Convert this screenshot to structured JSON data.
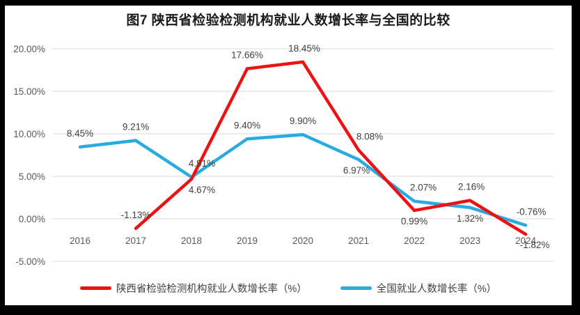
{
  "chart_data": {
    "type": "line",
    "title": "图7 陕西省检验检测机构就业人数增长率与全国的比较",
    "categories": [
      "2016",
      "2017",
      "2018",
      "2019",
      "2020",
      "2021",
      "2022",
      "2023",
      "2024"
    ],
    "series": [
      {
        "name": "陕西省检验检测机构就业人数增长率（%）",
        "color": "#ee1111",
        "values": [
          null,
          -1.13,
          4.67,
          17.66,
          18.45,
          8.08,
          0.99,
          2.16,
          -1.82
        ],
        "data_labels": [
          "",
          "-1.13%",
          "4.67%",
          "17.66%",
          "18.45%",
          "8.08%",
          "0.99%",
          "2.16%",
          "-1.82%"
        ],
        "label_placement": [
          "",
          "above",
          "below",
          "above",
          "above",
          "above",
          "below",
          "above",
          "below"
        ],
        "label_dx": [
          0,
          0,
          15,
          0,
          2,
          16,
          0,
          2,
          13
        ]
      },
      {
        "name": "全国就业人数增长率（%）",
        "color": "#29abe2",
        "values": [
          8.45,
          9.21,
          4.91,
          9.4,
          9.9,
          6.97,
          2.07,
          1.32,
          -0.76
        ],
        "data_labels": [
          "8.45%",
          "9.21%",
          "4.91%",
          "9.40%",
          "9.90%",
          "6.97%",
          "2.07%",
          "1.32%",
          "-0.76%"
        ],
        "label_placement": [
          "above",
          "above",
          "above",
          "above",
          "above",
          "below",
          "above",
          "below",
          "above"
        ],
        "label_dx": [
          0,
          0,
          15,
          0,
          0,
          -3,
          13,
          0,
          8
        ]
      }
    ],
    "ylim": [
      -5,
      20
    ],
    "ytick_values": [
      20,
      15,
      10,
      5,
      0,
      -5
    ],
    "ytick_labels": [
      "20.00%",
      "15.00%",
      "10.00%",
      "5.00%",
      "0.00%",
      "-5.00%"
    ],
    "grid": true,
    "legend_position": "bottom",
    "colors": {
      "gridline": "#d9d9d9",
      "axis_text": "#595959",
      "data_label_text": "#404040"
    }
  }
}
